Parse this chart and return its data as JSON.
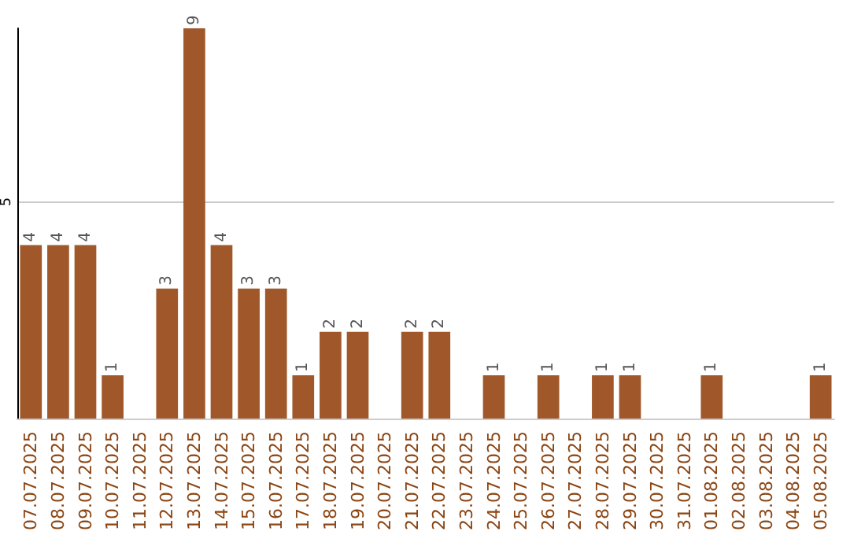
{
  "chart_data": {
    "type": "bar",
    "categories": [
      "07.07.2025",
      "08.07.2025",
      "09.07.2025",
      "10.07.2025",
      "11.07.2025",
      "12.07.2025",
      "13.07.2025",
      "14.07.2025",
      "15.07.2025",
      "16.07.2025",
      "17.07.2025",
      "18.07.2025",
      "19.07.2025",
      "20.07.2025",
      "21.07.2025",
      "22.07.2025",
      "23.07.2025",
      "24.07.2025",
      "25.07.2025",
      "26.07.2025",
      "27.07.2025",
      "28.07.2025",
      "29.07.2025",
      "30.07.2025",
      "31.07.2025",
      "01.08.2025",
      "02.08.2025",
      "03.08.2025",
      "04.08.2025",
      "05.08.2025"
    ],
    "values": [
      4,
      4,
      4,
      1,
      0,
      3,
      9,
      4,
      3,
      3,
      1,
      2,
      2,
      0,
      2,
      2,
      0,
      1,
      0,
      1,
      0,
      1,
      1,
      0,
      0,
      1,
      0,
      0,
      0,
      1
    ],
    "value_labels": [
      "4",
      "4",
      "4",
      "1",
      null,
      "3",
      "9",
      "4",
      "3",
      "3",
      "1",
      "2",
      "2",
      null,
      "2",
      "2",
      null,
      "1",
      null,
      "1",
      null,
      "1",
      "1",
      null,
      null,
      "1",
      null,
      null,
      null,
      "1"
    ],
    "color": "#a0582a",
    "ylim": [
      0,
      9
    ],
    "yticks": [
      5
    ],
    "grid": "y"
  }
}
